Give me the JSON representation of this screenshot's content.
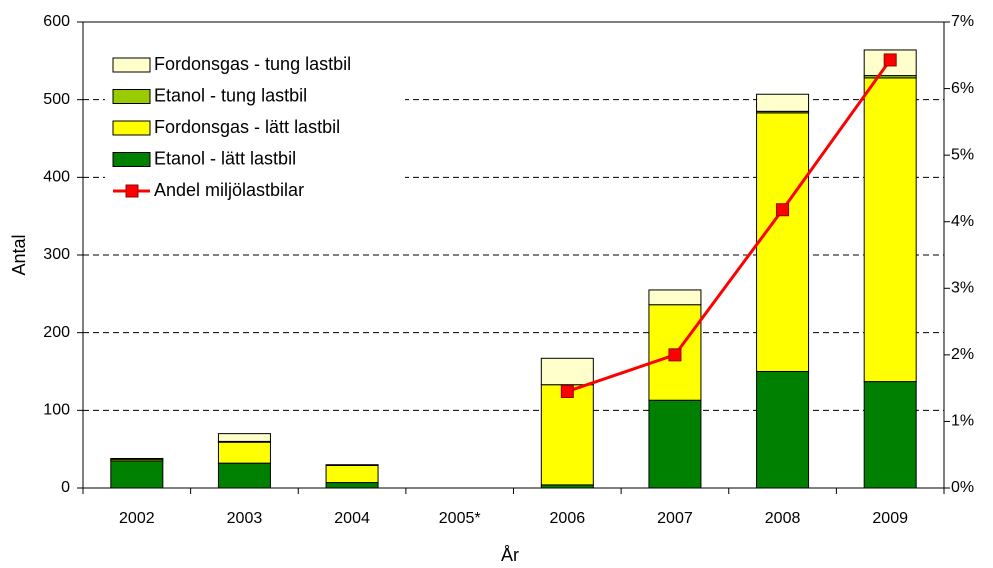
{
  "chart_data": {
    "type": "bar",
    "stacked": true,
    "ylabel": "Antal",
    "xlabel": "År",
    "categories": [
      "2002",
      "2003",
      "2004",
      "2005*",
      "2006",
      "2007",
      "2008",
      "2009"
    ],
    "series": [
      {
        "name": "Etanol - lätt lastbil",
        "color": "#008000",
        "values": [
          35,
          32,
          7,
          null,
          4,
          113,
          150,
          137
        ]
      },
      {
        "name": "Fordonsgas - lätt lastbil",
        "color": "#ffff00",
        "values": [
          2,
          27,
          22,
          null,
          129,
          123,
          333,
          391
        ]
      },
      {
        "name": "Etanol - tung lastbil",
        "color": "#99cc00",
        "values": [
          0,
          1,
          0,
          null,
          0,
          0,
          2,
          3
        ]
      },
      {
        "name": "Fordonsgas - tung lastbil",
        "color": "#ffffcc",
        "values": [
          1,
          10,
          1,
          null,
          34,
          19,
          22,
          33
        ]
      },
      {
        "name": "Andel miljölastbilar",
        "type": "line",
        "axis": "y2",
        "color": "#ff0000",
        "values": [
          null,
          null,
          null,
          null,
          1.45,
          2.0,
          4.18,
          6.43
        ]
      }
    ],
    "ylim": [
      0,
      600
    ],
    "yticks": [
      0,
      100,
      200,
      300,
      400,
      500,
      600
    ],
    "y2lim": [
      0,
      7
    ],
    "y2ticks": [
      {
        "value": 0,
        "label": "0%"
      },
      {
        "value": 1,
        "label": "1%"
      },
      {
        "value": 2,
        "label": "2%"
      },
      {
        "value": 3,
        "label": "3%"
      },
      {
        "value": 4,
        "label": "4%"
      },
      {
        "value": 5,
        "label": "5%"
      },
      {
        "value": 6,
        "label": "6%"
      },
      {
        "value": 7,
        "label": "7%"
      }
    ],
    "grid": true,
    "legend": "upper left"
  }
}
